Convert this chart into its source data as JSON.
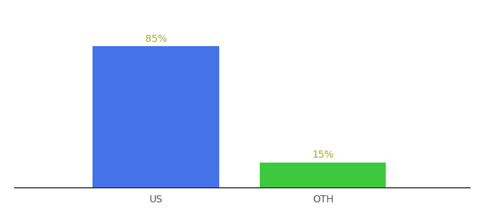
{
  "categories": [
    "US",
    "OTH"
  ],
  "values": [
    85,
    15
  ],
  "bar_colors": [
    "#4472e8",
    "#3dc93d"
  ],
  "background_color": "#ffffff",
  "bar_width": 0.25,
  "ylim": [
    0,
    100
  ],
  "label_fontsize": 10,
  "tick_fontsize": 10,
  "label_color": "#a8a828",
  "label_format": "{}%",
  "x_positions": [
    0.33,
    0.66
  ],
  "xlim": [
    0.05,
    0.95
  ]
}
